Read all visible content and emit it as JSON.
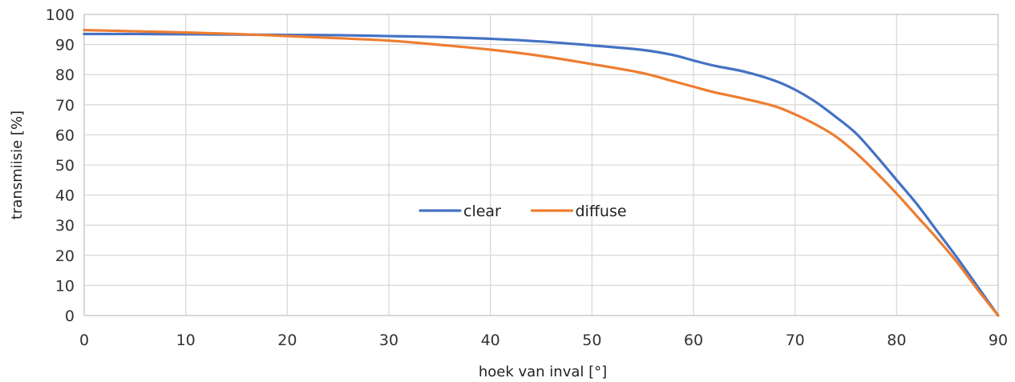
{
  "chart_data": {
    "type": "line",
    "title": "",
    "xlabel": "hoek van inval [°]",
    "ylabel": "transmiisie [%]",
    "xlim": [
      0,
      90
    ],
    "ylim": [
      0,
      100
    ],
    "xticks": [
      0,
      10,
      20,
      30,
      40,
      50,
      60,
      70,
      80,
      90
    ],
    "yticks": [
      0,
      10,
      20,
      30,
      40,
      50,
      60,
      70,
      80,
      90,
      100
    ],
    "grid": true,
    "legend_position": "center",
    "series": [
      {
        "name": "clear",
        "color": "#4472C4",
        "x": [
          0,
          5,
          10,
          15,
          20,
          25,
          30,
          35,
          40,
          45,
          50,
          55,
          58,
          60,
          62,
          65,
          68,
          70,
          72,
          74,
          76,
          78,
          80,
          82,
          84,
          86,
          88,
          90
        ],
        "y": [
          93.5,
          93.5,
          93.4,
          93.3,
          93.2,
          93.1,
          92.8,
          92.5,
          91.9,
          91.0,
          89.7,
          88.2,
          86.5,
          84.7,
          83.0,
          81.0,
          78.0,
          75.0,
          71.0,
          66.0,
          60.5,
          53.0,
          45.0,
          37.0,
          28.0,
          19.0,
          9.5,
          0
        ]
      },
      {
        "name": "diffuse",
        "color": "#ED7D31",
        "x": [
          0,
          5,
          10,
          15,
          20,
          25,
          30,
          35,
          40,
          45,
          50,
          55,
          58,
          60,
          62,
          65,
          68,
          70,
          72,
          74,
          76,
          78,
          80,
          82,
          84,
          86,
          88,
          90
        ],
        "y": [
          94.8,
          94.4,
          94.0,
          93.5,
          92.8,
          92.1,
          91.3,
          89.9,
          88.3,
          86.2,
          83.5,
          80.5,
          77.8,
          76.0,
          74.2,
          72.0,
          69.5,
          66.8,
          63.5,
          59.5,
          54.0,
          47.5,
          40.5,
          33.0,
          25.5,
          17.5,
          8.5,
          0
        ]
      }
    ]
  }
}
